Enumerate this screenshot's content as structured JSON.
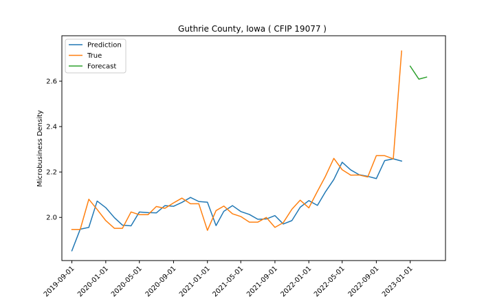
{
  "chart_data": {
    "type": "line",
    "title": "Guthrie County, Iowa ( CFIP 19077 )",
    "xlabel": "",
    "ylabel": "Microbusiness Density",
    "xlim": [
      "2019-07-27",
      "2023-05-08"
    ],
    "ylim": [
      1.81,
      2.8
    ],
    "x_ticks": [
      "2019-09-01",
      "2020-01-01",
      "2020-05-01",
      "2020-09-01",
      "2021-01-01",
      "2021-05-01",
      "2021-09-01",
      "2022-01-01",
      "2022-05-01",
      "2022-09-01",
      "2023-01-01"
    ],
    "y_ticks": [
      2.0,
      2.2,
      2.4,
      2.6
    ],
    "y_tick_labels": [
      "2.0",
      "2.2",
      "2.4",
      "2.6"
    ],
    "grid": false,
    "legend_position": "top-left",
    "x": [
      "2019-09-01",
      "2019-10-01",
      "2019-11-01",
      "2019-12-01",
      "2020-01-01",
      "2020-02-01",
      "2020-03-01",
      "2020-04-01",
      "2020-05-01",
      "2020-06-01",
      "2020-07-01",
      "2020-08-01",
      "2020-09-01",
      "2020-10-01",
      "2020-11-01",
      "2020-12-01",
      "2021-01-01",
      "2021-02-01",
      "2021-03-01",
      "2021-04-01",
      "2021-05-01",
      "2021-06-01",
      "2021-07-01",
      "2021-08-01",
      "2021-09-01",
      "2021-10-01",
      "2021-11-01",
      "2021-12-01",
      "2022-01-01",
      "2022-02-01",
      "2022-03-01",
      "2022-04-01",
      "2022-05-01",
      "2022-06-01",
      "2022-07-01",
      "2022-08-01",
      "2022-09-01",
      "2022-10-01",
      "2022-11-01",
      "2022-12-01"
    ],
    "series": [
      {
        "name": "Prediction",
        "color": "#1f77b4",
        "values": [
          1.853,
          1.948,
          1.956,
          2.072,
          2.043,
          1.999,
          1.966,
          1.963,
          2.024,
          2.021,
          2.02,
          2.052,
          2.049,
          2.066,
          2.088,
          2.07,
          2.067,
          1.964,
          2.027,
          2.052,
          2.026,
          2.013,
          1.992,
          1.993,
          2.008,
          1.971,
          1.986,
          2.045,
          2.074,
          2.053,
          2.111,
          2.167,
          2.243,
          2.209,
          2.188,
          2.181,
          2.171,
          2.25,
          2.258,
          2.248
        ]
      },
      {
        "name": "True",
        "color": "#ff7f0e",
        "values": [
          1.947,
          1.947,
          2.08,
          2.035,
          1.986,
          1.952,
          1.952,
          2.024,
          2.012,
          2.012,
          2.048,
          2.04,
          2.064,
          2.085,
          2.06,
          2.06,
          1.943,
          2.03,
          2.05,
          2.016,
          2.004,
          1.979,
          1.979,
          2.0,
          1.956,
          1.977,
          2.036,
          2.076,
          2.042,
          2.115,
          2.179,
          2.26,
          2.21,
          2.186,
          2.187,
          2.178,
          2.272,
          2.272,
          2.258,
          2.733
        ]
      },
      {
        "name": "Forecast",
        "color": "#2ca02c",
        "x": [
          "2023-01-01",
          "2023-02-01",
          "2023-03-01"
        ],
        "values": [
          2.666,
          2.609,
          2.618
        ]
      }
    ]
  }
}
